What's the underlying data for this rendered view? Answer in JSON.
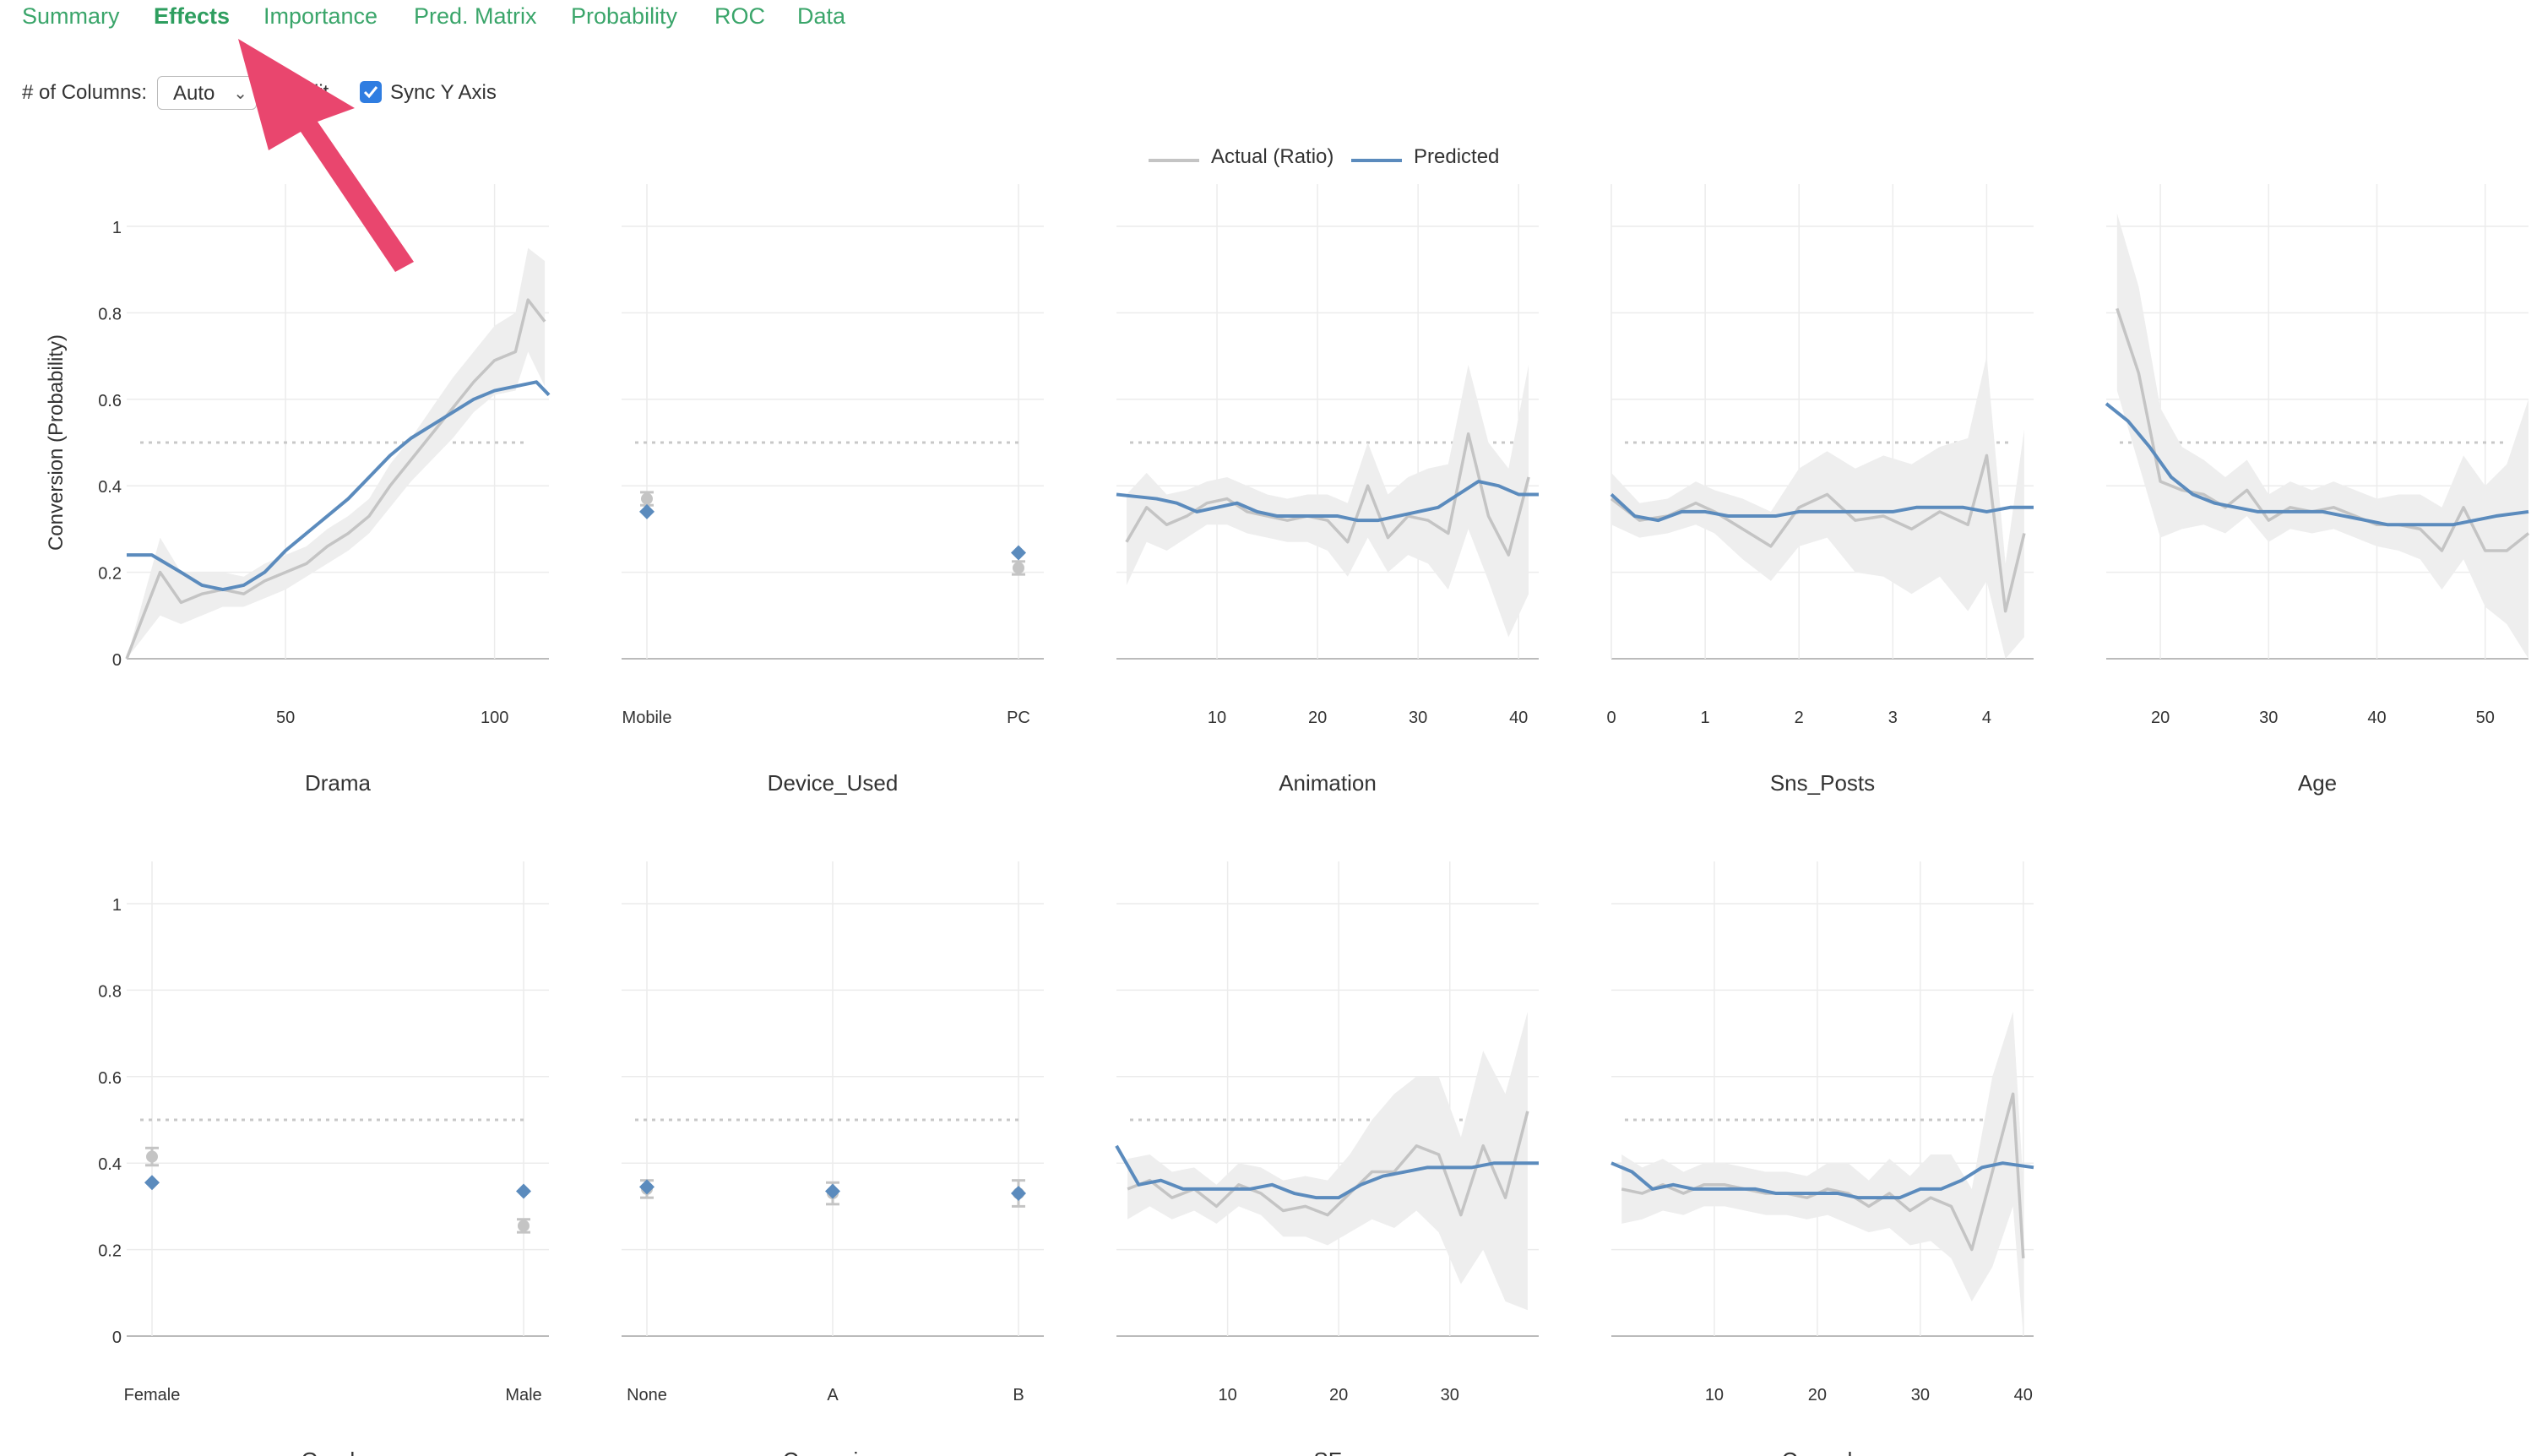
{
  "tabs": [
    {
      "label": "Summary",
      "active": false
    },
    {
      "label": "Effects",
      "active": true
    },
    {
      "label": "Importance",
      "active": false
    },
    {
      "label": "Pred. Matrix",
      "active": false
    },
    {
      "label": "Probability",
      "active": false
    },
    {
      "label": "ROC",
      "active": false
    },
    {
      "label": "Data",
      "active": false
    }
  ],
  "controls": {
    "columns_label": "# of Columns:",
    "columns_value": "Auto",
    "partial_label": "lit",
    "sync_label": "Sync Y Axis",
    "sync_checked": true
  },
  "colors": {
    "accent": "#3aa56a",
    "actual": "#c4c4c4",
    "predicted": "#5b8bbd",
    "band": "#eeeeee",
    "arrow": "#e9466e"
  },
  "legend": [
    {
      "label": "Actual (Ratio)",
      "color": "#c4c4c4"
    },
    {
      "label": "Predicted",
      "color": "#5b8bbd"
    }
  ],
  "chart_data": [
    {
      "type": "line",
      "title": "",
      "xlabel": "Drama",
      "ylabel": "Conversion (Probability)",
      "ylim": [
        0,
        1
      ],
      "xlim": [
        12,
        113
      ],
      "xticks": [
        50,
        100
      ],
      "yticks": [
        0,
        0.2,
        0.4,
        0.6,
        0.8,
        1
      ],
      "threshold": 0.5,
      "series": [
        {
          "name": "Actual (Ratio)",
          "x": [
            12,
            20,
            25,
            30,
            35,
            40,
            45,
            50,
            55,
            60,
            65,
            70,
            75,
            80,
            85,
            90,
            95,
            100,
            105,
            108,
            112
          ],
          "values": [
            0,
            0.2,
            0.13,
            0.15,
            0.16,
            0.15,
            0.18,
            0.2,
            0.22,
            0.26,
            0.29,
            0.33,
            0.4,
            0.46,
            0.52,
            0.58,
            0.64,
            0.69,
            0.71,
            0.83,
            0.78
          ]
        },
        {
          "name": "Predicted",
          "x": [
            12,
            18,
            25,
            30,
            35,
            40,
            45,
            50,
            55,
            60,
            65,
            70,
            75,
            80,
            85,
            90,
            95,
            100,
            105,
            110,
            113
          ],
          "values": [
            0.24,
            0.24,
            0.2,
            0.17,
            0.16,
            0.17,
            0.2,
            0.25,
            0.29,
            0.33,
            0.37,
            0.42,
            0.47,
            0.51,
            0.54,
            0.57,
            0.6,
            0.62,
            0.63,
            0.64,
            0.61
          ]
        }
      ],
      "band": {
        "x": [
          12,
          20,
          25,
          30,
          35,
          40,
          45,
          50,
          55,
          60,
          65,
          70,
          75,
          80,
          85,
          90,
          95,
          100,
          105,
          108,
          112
        ],
        "lower": [
          0,
          0.1,
          0.08,
          0.1,
          0.12,
          0.12,
          0.14,
          0.16,
          0.19,
          0.22,
          0.25,
          0.29,
          0.35,
          0.41,
          0.46,
          0.51,
          0.57,
          0.61,
          0.62,
          0.71,
          0.63
        ],
        "upper": [
          0,
          0.28,
          0.2,
          0.2,
          0.2,
          0.19,
          0.22,
          0.24,
          0.26,
          0.3,
          0.33,
          0.37,
          0.45,
          0.51,
          0.58,
          0.65,
          0.71,
          0.77,
          0.8,
          0.95,
          0.92
        ]
      }
    },
    {
      "type": "scatter",
      "xlabel": "Device_Used",
      "categories": [
        "Mobile",
        "PC"
      ],
      "threshold": 0.5,
      "series": [
        {
          "name": "Actual (Ratio)",
          "values": [
            0.37,
            0.21
          ],
          "err": [
            0.015,
            0.015
          ]
        },
        {
          "name": "Predicted",
          "values": [
            0.34,
            0.245
          ]
        }
      ]
    },
    {
      "type": "line",
      "xlabel": "Animation",
      "xlim": [
        0,
        42
      ],
      "xticks": [
        10,
        20,
        30,
        40
      ],
      "threshold": 0.5,
      "series": [
        {
          "name": "Actual (Ratio)",
          "x": [
            1,
            3,
            5,
            7,
            9,
            11,
            13,
            15,
            17,
            19,
            21,
            23,
            25,
            27,
            29,
            31,
            33,
            35,
            37,
            39,
            41
          ],
          "values": [
            0.27,
            0.35,
            0.31,
            0.33,
            0.36,
            0.37,
            0.34,
            0.33,
            0.32,
            0.33,
            0.32,
            0.27,
            0.4,
            0.28,
            0.33,
            0.32,
            0.29,
            0.52,
            0.33,
            0.24,
            0.42
          ]
        },
        {
          "name": "Predicted",
          "x": [
            0,
            4,
            6,
            8,
            10,
            12,
            14,
            16,
            18,
            20,
            22,
            24,
            26,
            28,
            30,
            32,
            34,
            36,
            38,
            40,
            42
          ],
          "values": [
            0.38,
            0.37,
            0.36,
            0.34,
            0.35,
            0.36,
            0.34,
            0.33,
            0.33,
            0.33,
            0.33,
            0.32,
            0.32,
            0.33,
            0.34,
            0.35,
            0.38,
            0.41,
            0.4,
            0.38,
            0.38
          ]
        }
      ],
      "band": {
        "x": [
          1,
          3,
          5,
          7,
          9,
          11,
          13,
          15,
          17,
          19,
          21,
          23,
          25,
          27,
          29,
          31,
          33,
          35,
          37,
          39,
          41
        ],
        "lower": [
          0.17,
          0.27,
          0.25,
          0.28,
          0.31,
          0.31,
          0.29,
          0.28,
          0.27,
          0.27,
          0.25,
          0.19,
          0.28,
          0.2,
          0.24,
          0.22,
          0.16,
          0.3,
          0.18,
          0.05,
          0.15
        ],
        "upper": [
          0.38,
          0.43,
          0.38,
          0.39,
          0.41,
          0.42,
          0.4,
          0.38,
          0.37,
          0.38,
          0.38,
          0.36,
          0.5,
          0.38,
          0.42,
          0.44,
          0.45,
          0.68,
          0.5,
          0.44,
          0.68
        ]
      }
    },
    {
      "type": "line",
      "xlabel": "Sns_Posts",
      "xlim": [
        0,
        4.5
      ],
      "xticks": [
        0,
        1,
        2,
        3,
        4
      ],
      "threshold": 0.5,
      "series": [
        {
          "name": "Actual (Ratio)",
          "x": [
            0,
            0.3,
            0.6,
            0.9,
            1.1,
            1.4,
            1.7,
            2,
            2.3,
            2.6,
            2.9,
            3.2,
            3.5,
            3.8,
            4,
            4.2,
            4.4
          ],
          "values": [
            0.37,
            0.32,
            0.33,
            0.36,
            0.34,
            0.3,
            0.26,
            0.35,
            0.38,
            0.32,
            0.33,
            0.3,
            0.34,
            0.31,
            0.47,
            0.11,
            0.29
          ]
        },
        {
          "name": "Predicted",
          "x": [
            0,
            0.25,
            0.5,
            0.75,
            1,
            1.25,
            1.5,
            1.75,
            2,
            2.25,
            2.5,
            2.75,
            3,
            3.25,
            3.5,
            3.75,
            4,
            4.25,
            4.5
          ],
          "values": [
            0.38,
            0.33,
            0.32,
            0.34,
            0.34,
            0.33,
            0.33,
            0.33,
            0.34,
            0.34,
            0.34,
            0.34,
            0.34,
            0.35,
            0.35,
            0.35,
            0.34,
            0.35,
            0.35
          ]
        }
      ],
      "band": {
        "x": [
          0,
          0.3,
          0.6,
          0.9,
          1.1,
          1.4,
          1.7,
          2,
          2.3,
          2.6,
          2.9,
          3.2,
          3.5,
          3.8,
          4,
          4.2,
          4.4
        ],
        "lower": [
          0.31,
          0.28,
          0.29,
          0.31,
          0.29,
          0.23,
          0.18,
          0.26,
          0.28,
          0.2,
          0.19,
          0.15,
          0.19,
          0.11,
          0.18,
          0.0,
          0.05
        ]
      }
    },
    {
      "type": "line",
      "xlabel": "Age",
      "xlim": [
        15,
        54
      ],
      "xticks": [
        20,
        30,
        40,
        50
      ],
      "threshold": 0.5,
      "series": [
        {
          "name": "Actual (Ratio)",
          "x": [
            16,
            18,
            20,
            22,
            24,
            26,
            28,
            30,
            32,
            34,
            36,
            38,
            40,
            42,
            44,
            46,
            48,
            50,
            52,
            54
          ],
          "values": [
            0.81,
            0.66,
            0.41,
            0.39,
            0.38,
            0.35,
            0.39,
            0.32,
            0.35,
            0.34,
            0.35,
            0.33,
            0.31,
            0.31,
            0.3,
            0.25,
            0.35,
            0.25,
            0.25,
            0.29
          ]
        },
        {
          "name": "Predicted",
          "x": [
            15,
            17,
            19,
            21,
            23,
            25,
            27,
            29,
            31,
            33,
            35,
            37,
            39,
            41,
            43,
            45,
            47,
            49,
            51,
            54
          ],
          "values": [
            0.59,
            0.55,
            0.49,
            0.42,
            0.38,
            0.36,
            0.35,
            0.34,
            0.34,
            0.34,
            0.34,
            0.33,
            0.32,
            0.31,
            0.31,
            0.31,
            0.31,
            0.32,
            0.33,
            0.34
          ]
        }
      ],
      "band": {
        "x": [
          16,
          18,
          20,
          22,
          24,
          26,
          28,
          30,
          32,
          34,
          36,
          38,
          40,
          42,
          44,
          46,
          48,
          50,
          52,
          54
        ],
        "lower": [
          0.62,
          0.45,
          0.28,
          0.3,
          0.31,
          0.29,
          0.33,
          0.27,
          0.3,
          0.29,
          0.3,
          0.28,
          0.26,
          0.25,
          0.23,
          0.16,
          0.23,
          0.12,
          0.08,
          0.0
        ],
        "upper": [
          1.03,
          0.86,
          0.58,
          0.49,
          0.46,
          0.42,
          0.46,
          0.38,
          0.41,
          0.39,
          0.41,
          0.39,
          0.37,
          0.38,
          0.38,
          0.35,
          0.47,
          0.4,
          0.45,
          0.6
        ]
      }
    },
    {
      "type": "scatter",
      "xlabel": "Gender",
      "categories": [
        "Female",
        "Male"
      ],
      "threshold": 0.5,
      "series": [
        {
          "name": "Actual (Ratio)",
          "values": [
            0.415,
            0.255
          ],
          "err": [
            0.02,
            0.015
          ]
        },
        {
          "name": "Predicted",
          "values": [
            0.355,
            0.335
          ]
        }
      ]
    },
    {
      "type": "scatter",
      "xlabel": "Campaign",
      "categories": [
        "None",
        "A",
        "B"
      ],
      "threshold": 0.5,
      "series": [
        {
          "name": "Actual (Ratio)",
          "values": [
            0.34,
            0.33,
            0.33
          ],
          "err": [
            0.02,
            0.025,
            0.03
          ]
        },
        {
          "name": "Predicted",
          "values": [
            0.345,
            0.335,
            0.33
          ]
        }
      ]
    },
    {
      "type": "line",
      "xlabel": "SF",
      "xlim": [
        0,
        38
      ],
      "xticks": [
        10,
        20,
        30
      ],
      "threshold": 0.5,
      "series": [
        {
          "name": "Actual (Ratio)",
          "x": [
            1,
            3,
            5,
            7,
            9,
            11,
            13,
            15,
            17,
            19,
            21,
            23,
            25,
            27,
            29,
            31,
            33,
            35,
            37
          ],
          "values": [
            0.34,
            0.36,
            0.32,
            0.34,
            0.3,
            0.35,
            0.33,
            0.29,
            0.3,
            0.28,
            0.33,
            0.38,
            0.38,
            0.44,
            0.42,
            0.28,
            0.44,
            0.32,
            0.52
          ]
        },
        {
          "name": "Predicted",
          "x": [
            0,
            2,
            4,
            6,
            8,
            10,
            12,
            14,
            16,
            18,
            20,
            22,
            24,
            26,
            28,
            30,
            32,
            34,
            36,
            38
          ],
          "values": [
            0.44,
            0.35,
            0.36,
            0.34,
            0.34,
            0.34,
            0.34,
            0.35,
            0.33,
            0.32,
            0.32,
            0.35,
            0.37,
            0.38,
            0.39,
            0.39,
            0.39,
            0.4,
            0.4,
            0.4
          ]
        }
      ],
      "band": {
        "x": [
          1,
          3,
          5,
          7,
          9,
          11,
          13,
          15,
          17,
          19,
          21,
          23,
          25,
          27,
          29,
          31,
          33,
          35,
          37
        ],
        "lower": [
          0.27,
          0.3,
          0.27,
          0.29,
          0.26,
          0.3,
          0.28,
          0.23,
          0.23,
          0.21,
          0.24,
          0.27,
          0.25,
          0.29,
          0.24,
          0.12,
          0.2,
          0.08,
          0.06
        ],
        "upper": [
          0.41,
          0.42,
          0.38,
          0.39,
          0.35,
          0.4,
          0.39,
          0.36,
          0.37,
          0.36,
          0.42,
          0.5,
          0.56,
          0.6,
          0.6,
          0.46,
          0.66,
          0.56,
          0.75
        ]
      }
    },
    {
      "type": "line",
      "xlabel": "Comedy",
      "xlim": [
        0,
        41
      ],
      "xticks": [
        10,
        20,
        30,
        40
      ],
      "threshold": 0.5,
      "series": [
        {
          "name": "Actual (Ratio)",
          "x": [
            1,
            3,
            5,
            7,
            9,
            11,
            13,
            15,
            17,
            19,
            21,
            23,
            25,
            27,
            29,
            31,
            33,
            35,
            37,
            39,
            40
          ],
          "values": [
            0.34,
            0.33,
            0.35,
            0.33,
            0.35,
            0.35,
            0.34,
            0.33,
            0.33,
            0.32,
            0.34,
            0.33,
            0.3,
            0.33,
            0.29,
            0.32,
            0.3,
            0.2,
            0.38,
            0.56,
            0.18
          ]
        },
        {
          "name": "Predicted",
          "x": [
            0,
            2,
            4,
            6,
            8,
            10,
            12,
            14,
            16,
            18,
            20,
            22,
            24,
            26,
            28,
            30,
            32,
            34,
            36,
            38,
            41
          ],
          "values": [
            0.4,
            0.38,
            0.34,
            0.35,
            0.34,
            0.34,
            0.34,
            0.34,
            0.33,
            0.33,
            0.33,
            0.33,
            0.32,
            0.32,
            0.32,
            0.34,
            0.34,
            0.36,
            0.39,
            0.4,
            0.39
          ]
        }
      ],
      "band": {
        "x": [
          1,
          3,
          5,
          7,
          9,
          11,
          13,
          15,
          17,
          19,
          21,
          23,
          25,
          27,
          29,
          31,
          33,
          35,
          37,
          39,
          40
        ],
        "lower": [
          0.26,
          0.27,
          0.29,
          0.28,
          0.3,
          0.3,
          0.29,
          0.28,
          0.28,
          0.27,
          0.28,
          0.26,
          0.24,
          0.25,
          0.21,
          0.22,
          0.18,
          0.08,
          0.16,
          0.3,
          0.0
        ],
        "upper": [
          0.42,
          0.39,
          0.41,
          0.38,
          0.4,
          0.4,
          0.39,
          0.38,
          0.38,
          0.37,
          0.4,
          0.4,
          0.36,
          0.41,
          0.37,
          0.42,
          0.42,
          0.34,
          0.6,
          0.75,
          0.35
        ]
      }
    }
  ]
}
